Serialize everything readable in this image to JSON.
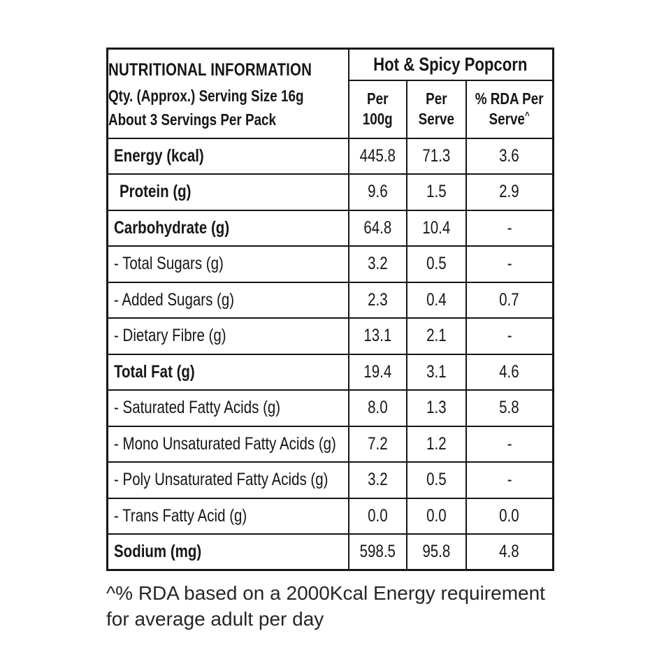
{
  "table": {
    "title": "NUTRITIONAL INFORMATION",
    "subtitle_line1": "Qty. (Approx.) Serving Size 16g",
    "subtitle_line2": "About 3 Servings Per Pack",
    "product": "Hot & Spicy Popcorn",
    "columns": [
      {
        "line1": "Per",
        "line2": "100g",
        "sup": ""
      },
      {
        "line1": "Per",
        "line2": "Serve",
        "sup": ""
      },
      {
        "line1": "% RDA Per",
        "line2": "Serve",
        "sup": "^"
      }
    ],
    "rows": [
      {
        "label": "Energy (kcal)",
        "per_100g": "445.8",
        "per_serve": "71.3",
        "rda": "3.6",
        "bold": true,
        "indent": false
      },
      {
        "label": "Protein (g)",
        "per_100g": "9.6",
        "per_serve": "1.5",
        "rda": "2.9",
        "bold": true,
        "indent": true
      },
      {
        "label": "Carbohydrate (g)",
        "per_100g": "64.8",
        "per_serve": "10.4",
        "rda": "-",
        "bold": true,
        "indent": false
      },
      {
        "label": "- Total Sugars (g)",
        "per_100g": "3.2",
        "per_serve": "0.5",
        "rda": "-",
        "bold": false,
        "indent": false
      },
      {
        "label": "- Added Sugars (g)",
        "per_100g": "2.3",
        "per_serve": "0.4",
        "rda": "0.7",
        "bold": false,
        "indent": false
      },
      {
        "label": "- Dietary Fibre (g)",
        "per_100g": "13.1",
        "per_serve": "2.1",
        "rda": "-",
        "bold": false,
        "indent": false
      },
      {
        "label": "Total Fat (g)",
        "per_100g": "19.4",
        "per_serve": "3.1",
        "rda": "4.6",
        "bold": true,
        "indent": false
      },
      {
        "label": "- Saturated Fatty Acids (g)",
        "per_100g": "8.0",
        "per_serve": "1.3",
        "rda": "5.8",
        "bold": false,
        "indent": false
      },
      {
        "label": "- Mono Unsaturated Fatty Acids (g)",
        "per_100g": "7.2",
        "per_serve": "1.2",
        "rda": "-",
        "bold": false,
        "indent": false
      },
      {
        "label": "- Poly Unsaturated Fatty Acids (g)",
        "per_100g": "3.2",
        "per_serve": "0.5",
        "rda": "-",
        "bold": false,
        "indent": false
      },
      {
        "label": "- Trans Fatty Acid (g)",
        "per_100g": "0.0",
        "per_serve": "0.0",
        "rda": "0.0",
        "bold": false,
        "indent": false
      },
      {
        "label": "Sodium (mg)",
        "per_100g": "598.5",
        "per_serve": "95.8",
        "rda": "4.8",
        "bold": true,
        "indent": false
      }
    ]
  },
  "footnote": {
    "line1": "^% RDA based on a 2000Kcal Energy requirement",
    "line2": "for average adult per day"
  },
  "colors": {
    "text": "#161616",
    "border": "#161616",
    "background": "#ffffff"
  }
}
